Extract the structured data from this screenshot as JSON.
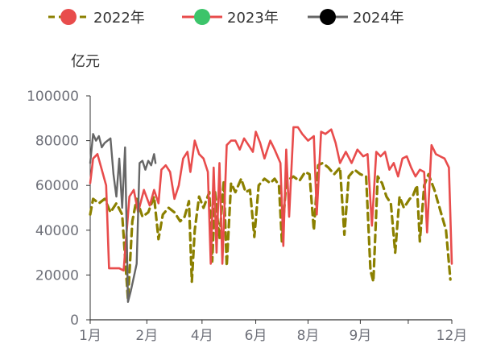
{
  "chart_data": {
    "type": "line",
    "ylabel": "亿元",
    "ylim": [
      0,
      100000
    ],
    "y_ticks": [
      "0",
      "20000",
      "40000",
      "60000",
      "80000",
      "100000"
    ],
    "x_tick_labels": [
      "1月",
      "2月",
      "4月",
      "6月",
      "8月",
      "9月",
      "12月"
    ],
    "legend_position": "top",
    "series": [
      {
        "name": "2022年",
        "color": "#8b8000",
        "marker_color": "#e84c4c",
        "values": [
          [
            0.0,
            47000
          ],
          [
            0.1,
            54000
          ],
          [
            0.3,
            52000
          ],
          [
            0.5,
            54000
          ],
          [
            0.7,
            48000
          ],
          [
            0.9,
            52000
          ],
          [
            1.1,
            47000
          ],
          [
            1.3,
            9000
          ],
          [
            1.45,
            44000
          ],
          [
            1.6,
            54000
          ],
          [
            1.8,
            46000
          ],
          [
            2.0,
            48000
          ],
          [
            2.2,
            55000
          ],
          [
            2.35,
            36000
          ],
          [
            2.5,
            47000
          ],
          [
            2.7,
            50000
          ],
          [
            2.9,
            48000
          ],
          [
            3.1,
            44000
          ],
          [
            3.25,
            46000
          ],
          [
            3.4,
            53000
          ],
          [
            3.5,
            17000
          ],
          [
            3.6,
            40000
          ],
          [
            3.75,
            55000
          ],
          [
            3.9,
            50000
          ],
          [
            4.1,
            57000
          ],
          [
            4.2,
            26000
          ],
          [
            4.3,
            57000
          ],
          [
            4.45,
            36000
          ],
          [
            4.6,
            62000
          ],
          [
            4.7,
            24000
          ],
          [
            4.85,
            61000
          ],
          [
            5.0,
            57000
          ],
          [
            5.2,
            63000
          ],
          [
            5.35,
            57000
          ],
          [
            5.5,
            58000
          ],
          [
            5.65,
            37000
          ],
          [
            5.8,
            60000
          ],
          [
            6.0,
            63000
          ],
          [
            6.2,
            61000
          ],
          [
            6.35,
            63000
          ],
          [
            6.5,
            60000
          ],
          [
            6.6,
            35000
          ],
          [
            6.75,
            62000
          ],
          [
            7.0,
            64000
          ],
          [
            7.2,
            62000
          ],
          [
            7.4,
            66000
          ],
          [
            7.55,
            65000
          ],
          [
            7.7,
            40000
          ],
          [
            7.85,
            69000
          ],
          [
            8.0,
            70000
          ],
          [
            8.2,
            68000
          ],
          [
            8.4,
            65000
          ],
          [
            8.6,
            68000
          ],
          [
            8.75,
            38000
          ],
          [
            8.9,
            64000
          ],
          [
            9.1,
            67000
          ],
          [
            9.3,
            65000
          ],
          [
            9.5,
            64000
          ],
          [
            9.65,
            22000
          ],
          [
            9.75,
            17000
          ],
          [
            9.9,
            64000
          ],
          [
            10.05,
            61000
          ],
          [
            10.2,
            55000
          ],
          [
            10.35,
            52000
          ],
          [
            10.5,
            30000
          ],
          [
            10.65,
            55000
          ],
          [
            10.8,
            50000
          ],
          [
            11.0,
            54000
          ],
          [
            11.1,
            55000
          ],
          [
            11.25,
            60000
          ],
          [
            11.35,
            35000
          ],
          [
            11.5,
            60000
          ],
          [
            11.65,
            65000
          ],
          [
            11.85,
            58000
          ],
          [
            12.05,
            49000
          ],
          [
            12.25,
            40000
          ],
          [
            12.4,
            18000
          ]
        ]
      },
      {
        "name": "2023年",
        "color": "#e84c4c",
        "marker_color": "#3cc46a",
        "values": [
          [
            0.0,
            61000
          ],
          [
            0.1,
            72000
          ],
          [
            0.25,
            74000
          ],
          [
            0.4,
            67000
          ],
          [
            0.55,
            60000
          ],
          [
            0.65,
            23000
          ],
          [
            0.85,
            23000
          ],
          [
            1.0,
            23000
          ],
          [
            1.15,
            22000
          ],
          [
            1.35,
            55000
          ],
          [
            1.5,
            58000
          ],
          [
            1.65,
            48000
          ],
          [
            1.85,
            58000
          ],
          [
            2.05,
            51000
          ],
          [
            2.2,
            58000
          ],
          [
            2.35,
            52000
          ],
          [
            2.45,
            67000
          ],
          [
            2.6,
            69000
          ],
          [
            2.75,
            66000
          ],
          [
            2.9,
            54000
          ],
          [
            3.05,
            60000
          ],
          [
            3.2,
            72000
          ],
          [
            3.35,
            75000
          ],
          [
            3.45,
            66000
          ],
          [
            3.6,
            80000
          ],
          [
            3.75,
            74000
          ],
          [
            3.9,
            72000
          ],
          [
            4.05,
            66000
          ],
          [
            4.15,
            25000
          ],
          [
            4.25,
            68000
          ],
          [
            4.35,
            30000
          ],
          [
            4.45,
            70000
          ],
          [
            4.55,
            25000
          ],
          [
            4.7,
            78000
          ],
          [
            4.85,
            80000
          ],
          [
            5.0,
            80000
          ],
          [
            5.15,
            76000
          ],
          [
            5.3,
            81000
          ],
          [
            5.45,
            78000
          ],
          [
            5.6,
            75000
          ],
          [
            5.7,
            84000
          ],
          [
            5.85,
            79000
          ],
          [
            6.0,
            72000
          ],
          [
            6.2,
            80000
          ],
          [
            6.35,
            76000
          ],
          [
            6.55,
            70000
          ],
          [
            6.65,
            33000
          ],
          [
            6.75,
            76000
          ],
          [
            6.85,
            46000
          ],
          [
            7.0,
            86000
          ],
          [
            7.15,
            86000
          ],
          [
            7.3,
            83000
          ],
          [
            7.5,
            80000
          ],
          [
            7.7,
            82000
          ],
          [
            7.8,
            47000
          ],
          [
            7.95,
            84000
          ],
          [
            8.1,
            83000
          ],
          [
            8.3,
            85000
          ],
          [
            8.45,
            79000
          ],
          [
            8.6,
            70000
          ],
          [
            8.8,
            75000
          ],
          [
            9.0,
            70000
          ],
          [
            9.2,
            76000
          ],
          [
            9.4,
            73000
          ],
          [
            9.55,
            74000
          ],
          [
            9.7,
            42000
          ],
          [
            9.85,
            75000
          ],
          [
            10.0,
            73000
          ],
          [
            10.15,
            75000
          ],
          [
            10.3,
            67000
          ],
          [
            10.45,
            70000
          ],
          [
            10.6,
            64000
          ],
          [
            10.75,
            72000
          ],
          [
            10.9,
            73000
          ],
          [
            11.05,
            68000
          ],
          [
            11.2,
            64000
          ],
          [
            11.35,
            67000
          ],
          [
            11.5,
            66000
          ],
          [
            11.6,
            39000
          ],
          [
            11.75,
            78000
          ],
          [
            11.9,
            74000
          ],
          [
            12.05,
            73000
          ],
          [
            12.2,
            72000
          ],
          [
            12.35,
            68000
          ],
          [
            12.45,
            25000
          ]
        ]
      },
      {
        "name": "2024年",
        "color": "#666666",
        "marker_color": "#000000",
        "values": [
          [
            0.0,
            70000
          ],
          [
            0.1,
            83000
          ],
          [
            0.2,
            80000
          ],
          [
            0.3,
            82000
          ],
          [
            0.4,
            77000
          ],
          [
            0.5,
            79000
          ],
          [
            0.6,
            80000
          ],
          [
            0.7,
            81000
          ],
          [
            0.8,
            65000
          ],
          [
            0.9,
            55000
          ],
          [
            1.0,
            72000
          ],
          [
            1.1,
            50000
          ],
          [
            1.2,
            77000
          ],
          [
            1.3,
            8000
          ],
          [
            1.4,
            13000
          ],
          [
            1.5,
            19000
          ],
          [
            1.6,
            25000
          ],
          [
            1.7,
            70000
          ],
          [
            1.8,
            71000
          ],
          [
            1.9,
            67000
          ],
          [
            2.0,
            71000
          ],
          [
            2.1,
            69000
          ],
          [
            2.2,
            74000
          ],
          [
            2.25,
            70000
          ]
        ]
      }
    ]
  }
}
